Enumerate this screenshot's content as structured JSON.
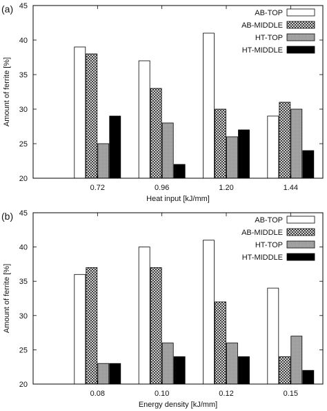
{
  "chart_data": [
    {
      "type": "bar",
      "panel_label": "(a)",
      "xlabel": "Heat input [kJ/mm]",
      "ylabel": "Amount of ferrite [%]",
      "ylim": [
        20,
        45
      ],
      "yticks": [
        20,
        25,
        30,
        35,
        40,
        45
      ],
      "categories": [
        "0.72",
        "0.96",
        "1.20",
        "1.44"
      ],
      "legend_position": "top-right",
      "series": [
        {
          "name": "AB-TOP",
          "fill": "white",
          "values": [
            39,
            37,
            41,
            29
          ]
        },
        {
          "name": "AB-MIDDLE",
          "fill": "crosshatch",
          "values": [
            38,
            33,
            30,
            31
          ]
        },
        {
          "name": "HT-TOP",
          "fill": "gray",
          "values": [
            25,
            28,
            26,
            30
          ]
        },
        {
          "name": "HT-MIDDLE",
          "fill": "black",
          "values": [
            29,
            22,
            27,
            24
          ]
        }
      ]
    },
    {
      "type": "bar",
      "panel_label": "(b)",
      "xlabel": "Energy density [kJ/mm]",
      "ylabel": "Amount of ferrite [%]",
      "ylim": [
        20,
        45
      ],
      "yticks": [
        20,
        25,
        30,
        35,
        40,
        45
      ],
      "categories": [
        "0.08",
        "0.10",
        "0.12",
        "0.15"
      ],
      "legend_position": "top-right",
      "series": [
        {
          "name": "AB-TOP",
          "fill": "white",
          "values": [
            36,
            40,
            41,
            34
          ]
        },
        {
          "name": "AB-MIDDLE",
          "fill": "crosshatch",
          "values": [
            37,
            37,
            32,
            24
          ]
        },
        {
          "name": "HT-TOP",
          "fill": "gray",
          "values": [
            23,
            26,
            26,
            27
          ]
        },
        {
          "name": "HT-MIDDLE",
          "fill": "black",
          "values": [
            23,
            24,
            24,
            22
          ]
        }
      ]
    }
  ],
  "colors": {
    "white": "#ffffff",
    "gray": "#9a9a9a",
    "black": "#000000",
    "crosshatch_bg": "#ffffff",
    "crosshatch_line": "#222222",
    "axis": "#000000"
  }
}
